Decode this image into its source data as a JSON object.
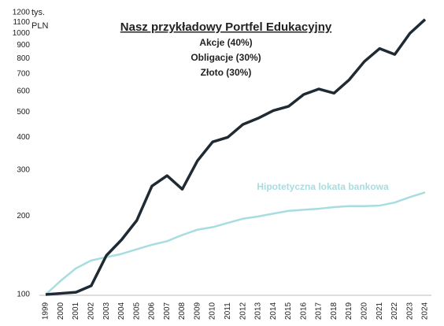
{
  "chart_data": {
    "type": "line",
    "title": "Nasz przykładowy Portfel Edukacyjny",
    "subtitle": [
      "Akcje (40%)",
      "Obligacje (30%)",
      "Złoto (30%)"
    ],
    "ylabel": "tys. PLN",
    "annotation": "Hipotetyczna lokata bankowa",
    "categories": [
      "1999",
      "2000",
      "2001",
      "2002",
      "2003",
      "2004",
      "2005",
      "2006",
      "2007",
      "2008",
      "2009",
      "2010",
      "2011",
      "2012",
      "2013",
      "2014",
      "2015",
      "2016",
      "2017",
      "2018",
      "2019",
      "2020",
      "2021",
      "2022",
      "2023",
      "2024"
    ],
    "series": [
      {
        "name": "Nasz przykładowy Portfel Edukacyjny",
        "color": "#1f2a33",
        "values": [
          100,
          101,
          102,
          108,
          141,
          162,
          192,
          260,
          285,
          253,
          325,
          384,
          400,
          448,
          473,
          506,
          525,
          583,
          612,
          590,
          664,
          780,
          874,
          830,
          1000,
          1130
        ]
      },
      {
        "name": "Hipotetyczna lokata bankowa",
        "color": "#a8dde0",
        "values": [
          100,
          113,
          126,
          135,
          139,
          143,
          149,
          155,
          160,
          169,
          177,
          181,
          188,
          195,
          199,
          204,
          209,
          211,
          213,
          216,
          218,
          218,
          219,
          225,
          236,
          246
        ]
      }
    ],
    "ylim": [
      100,
      1200
    ],
    "yticks": [
      100,
      200,
      300,
      400,
      500,
      600,
      700,
      800,
      900,
      1000,
      1100,
      1200
    ],
    "log_y": true,
    "grid": false
  }
}
